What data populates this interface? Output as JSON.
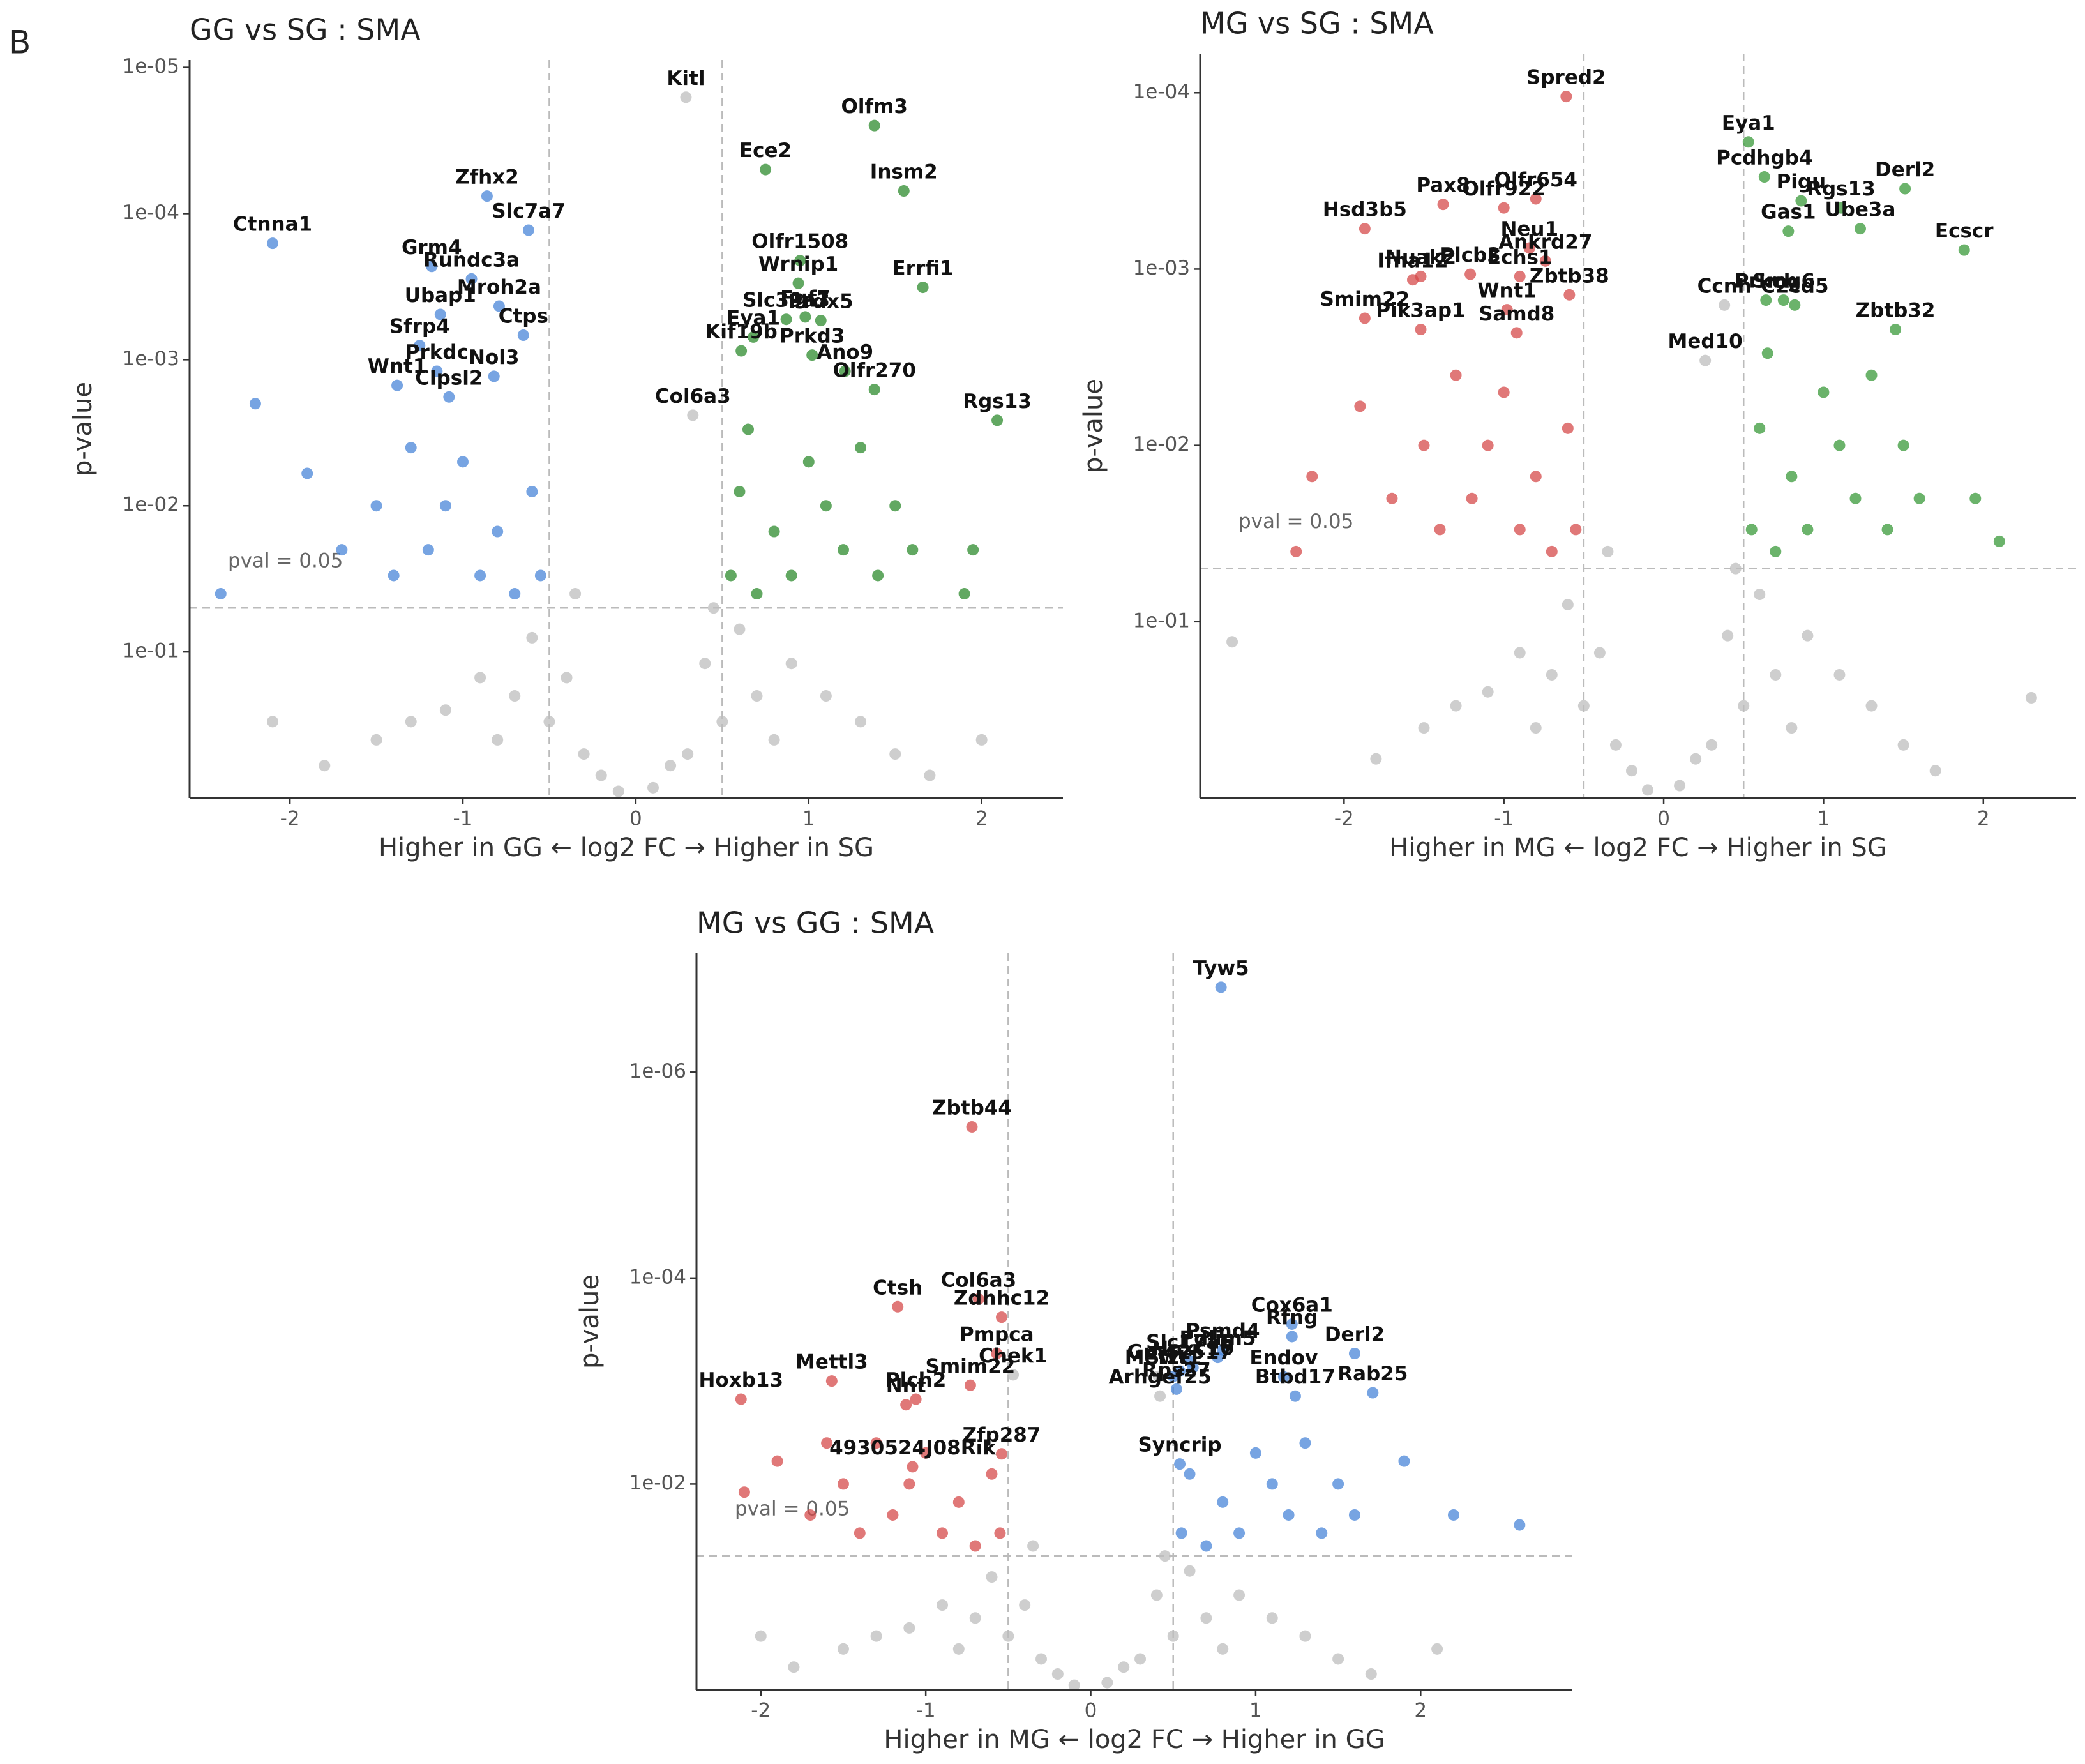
{
  "panel_label": "B",
  "chart_data": [
    {
      "type": "scatter",
      "title": "GG vs SG : SMA",
      "xlabel": "Higher in GG ← log2 FC → Higher in SG",
      "ylabel": "p-value",
      "xlim": [
        -2.58,
        2.47
      ],
      "ylim": [
        1,
        8.9e-06
      ],
      "log_y": true,
      "xticks": [
        -2,
        -1,
        0,
        1,
        2
      ],
      "yticks": [
        {
          "value": 1e-05,
          "label": "1e-05"
        },
        {
          "value": 0.0001,
          "label": "1e-04"
        },
        {
          "value": 0.001,
          "label": "1e-03"
        },
        {
          "value": 0.01,
          "label": "1e-02"
        },
        {
          "value": 0.1,
          "label": "1e-01"
        }
      ],
      "threshold_x": [
        -0.5,
        0.5
      ],
      "threshold_y": 0.05,
      "threshold_label": "pval = 0.05",
      "series": [
        {
          "color": "#bdbdbd",
          "x": [
            -0.1,
            0.1,
            -0.3,
            0.3,
            -0.5,
            0.5,
            -0.7,
            0.7,
            -0.9,
            0.9,
            -1.1,
            1.1,
            -1.3,
            1.3,
            -0.4,
            0.4,
            -0.2,
            0.2,
            -0.6,
            0.6,
            -1.5,
            1.5,
            -0.35,
            0.45,
            -1.8,
            1.7,
            -0.8,
            0.8,
            -2.1,
            2.0,
            0.29,
            0.33
          ],
          "values": [
            0.9,
            0.85,
            0.5,
            0.5,
            0.3,
            0.3,
            0.2,
            0.2,
            0.15,
            0.12,
            0.25,
            0.2,
            0.3,
            0.3,
            0.15,
            0.12,
            0.7,
            0.6,
            0.08,
            0.07,
            0.4,
            0.5,
            0.04,
            0.05,
            0.6,
            0.7,
            0.4,
            0.4,
            0.3,
            0.4,
            1.6e-05,
            0.0024
          ],
          "labels": [
            null,
            null,
            null,
            null,
            null,
            null,
            null,
            null,
            null,
            null,
            null,
            null,
            null,
            null,
            null,
            null,
            null,
            null,
            null,
            null,
            null,
            null,
            null,
            null,
            null,
            null,
            null,
            null,
            null,
            null,
            "Kitl",
            "Col6a3"
          ]
        },
        {
          "color": "#4a86d8",
          "x": [
            -0.7,
            -0.9,
            -1.2,
            -1.5,
            -0.6,
            -1.0,
            -1.3,
            -1.7,
            -0.8,
            -1.1,
            -0.55,
            -1.4,
            -2.4,
            -2.2,
            -1.9,
            -0.86,
            -0.62,
            -2.1,
            -1.18,
            -0.95,
            -1.13,
            -0.79,
            -0.65,
            -1.25,
            -1.15,
            -1.38,
            -1.08,
            -0.82
          ],
          "values": [
            0.04,
            0.03,
            0.02,
            0.01,
            0.008,
            0.005,
            0.004,
            0.02,
            0.015,
            0.01,
            0.03,
            0.03,
            0.04,
            0.002,
            0.006,
            7.6e-05,
            0.00013,
            0.00016,
            0.00023,
            0.00028,
            0.00049,
            0.00043,
            0.00068,
            0.0008,
            0.0012,
            0.0015,
            0.0018,
            0.0013
          ],
          "labels": [
            null,
            null,
            null,
            null,
            null,
            null,
            null,
            null,
            null,
            null,
            null,
            null,
            null,
            null,
            null,
            "Zfhx2",
            "Slc7a7",
            "Ctnna1",
            "Grm4",
            "Rundc3a",
            "Ubap1",
            "Mroh2a",
            "Ctps",
            "Sfrp4",
            "Prkdc",
            "Wnt1",
            "Clpsl2",
            "Nol3"
          ]
        },
        {
          "color": "#2e8b2e",
          "x": [
            0.7,
            0.9,
            1.2,
            1.5,
            0.6,
            1.0,
            1.3,
            1.6,
            0.8,
            1.1,
            0.55,
            1.4,
            1.9,
            1.95,
            0.65,
            1.38,
            0.75,
            1.55,
            0.94,
            0.95,
            0.87,
            0.98,
            1.66,
            1.07,
            0.68,
            0.61,
            1.21,
            1.02,
            2.09,
            1.38
          ],
          "values": [
            0.04,
            0.03,
            0.02,
            0.01,
            0.008,
            0.005,
            0.004,
            0.02,
            0.015,
            0.01,
            0.03,
            0.03,
            0.04,
            0.02,
            0.003,
            2.5e-05,
            5e-05,
            7e-05,
            0.0003,
            0.00021,
            0.00053,
            0.00051,
            0.00032,
            0.00054,
            0.0007,
            0.00087,
            0.0012,
            0.00093,
            0.0026,
            0.0016
          ],
          "labels": [
            null,
            null,
            null,
            null,
            null,
            null,
            null,
            null,
            null,
            null,
            null,
            null,
            null,
            null,
            null,
            "Olfm3",
            "Ece2",
            "Insm2",
            "Wrnip1",
            "Olfr1508",
            "Slc39a3",
            "Fgf7",
            "Errfi1",
            "Prdx5",
            "Eya1",
            "Kif19b",
            "Ano9",
            "Prkd3",
            "Rgs13",
            "Olfr270"
          ]
        }
      ]
    },
    {
      "type": "scatter",
      "title": "MG vs SG : SMA",
      "xlabel": "Higher in MG ← log2 FC → Higher in SG",
      "ylabel": "p-value",
      "xlim": [
        -2.9,
        2.58
      ],
      "ylim": [
        1,
        6e-05
      ],
      "log_y": true,
      "xticks": [
        -2,
        -1,
        0,
        1,
        2
      ],
      "yticks": [
        {
          "value": 0.0001,
          "label": "1e-04"
        },
        {
          "value": 0.001,
          "label": "1e-03"
        },
        {
          "value": 0.01,
          "label": "1e-02"
        },
        {
          "value": 0.1,
          "label": "1e-01"
        }
      ],
      "threshold_x": [
        -0.5,
        0.5
      ],
      "threshold_y": 0.05,
      "threshold_label": "pval = 0.05",
      "series": [
        {
          "color": "#bdbdbd",
          "x": [
            -0.1,
            0.1,
            -0.3,
            0.3,
            -0.5,
            0.5,
            -0.7,
            0.7,
            -0.9,
            0.9,
            -1.1,
            1.1,
            -1.3,
            1.3,
            -0.4,
            0.4,
            -0.2,
            0.2,
            -0.6,
            0.6,
            -1.5,
            1.5,
            -0.35,
            0.45,
            -1.8,
            1.7,
            -0.8,
            0.8,
            -2.7,
            2.3,
            0.38,
            0.26
          ],
          "values": [
            0.9,
            0.85,
            0.5,
            0.5,
            0.3,
            0.3,
            0.2,
            0.2,
            0.15,
            0.12,
            0.25,
            0.2,
            0.3,
            0.3,
            0.15,
            0.12,
            0.7,
            0.6,
            0.08,
            0.07,
            0.4,
            0.5,
            0.04,
            0.05,
            0.6,
            0.7,
            0.4,
            0.4,
            0.13,
            0.27,
            0.0016,
            0.0033
          ],
          "labels": [
            null,
            null,
            null,
            null,
            null,
            null,
            null,
            null,
            null,
            null,
            null,
            null,
            null,
            null,
            null,
            null,
            null,
            null,
            null,
            null,
            null,
            null,
            null,
            null,
            null,
            null,
            null,
            null,
            null,
            null,
            "Ccnh",
            "Med10"
          ]
        },
        {
          "color": "#d64b4b",
          "x": [
            -0.7,
            -0.9,
            -1.2,
            -1.5,
            -0.6,
            -1.0,
            -1.3,
            -1.7,
            -0.8,
            -1.1,
            -0.55,
            -1.4,
            -2.3,
            -2.2,
            -1.9,
            -0.61,
            -1.87,
            -1.38,
            -0.8,
            -1.0,
            -0.84,
            -0.74,
            -1.52,
            -1.21,
            -0.9,
            -1.57,
            -1.87,
            -0.98,
            -0.59,
            -1.52,
            -0.92
          ],
          "values": [
            0.04,
            0.03,
            0.02,
            0.01,
            0.008,
            0.005,
            0.004,
            0.02,
            0.015,
            0.01,
            0.03,
            0.03,
            0.04,
            0.015,
            0.006,
            0.000105,
            0.00059,
            0.00043,
            0.0004,
            0.00045,
            0.00076,
            0.0009,
            0.0011,
            0.00107,
            0.0011,
            0.00115,
            0.0019,
            0.0017,
            0.0014,
            0.0022,
            0.0023
          ],
          "labels": [
            null,
            null,
            null,
            null,
            null,
            null,
            null,
            null,
            null,
            null,
            null,
            null,
            null,
            null,
            null,
            "Spred2",
            "Hsd3b5",
            "Pax8",
            "Olfr654",
            "Olfr922",
            "Neu1",
            "Ankrd27",
            "Nuak2",
            "Plcb3",
            "Echs1",
            "Ifna12",
            "Smim22",
            "Wnt1",
            "Zbtb38",
            "Pik3ap1",
            "Samd8"
          ]
        },
        {
          "color": "#3a9a3a",
          "x": [
            0.7,
            0.9,
            1.2,
            1.5,
            0.6,
            1.0,
            1.3,
            1.6,
            0.8,
            1.1,
            0.55,
            1.4,
            2.1,
            1.95,
            0.65,
            0.53,
            0.63,
            0.86,
            1.51,
            0.78,
            1.11,
            1.23,
            1.88,
            0.64,
            0.75,
            1.45,
            0.82
          ],
          "values": [
            0.04,
            0.03,
            0.02,
            0.01,
            0.008,
            0.005,
            0.004,
            0.02,
            0.015,
            0.01,
            0.03,
            0.03,
            0.035,
            0.02,
            0.003,
            0.00019,
            0.0003,
            0.00041,
            0.00035,
            0.00061,
            0.00045,
            0.00059,
            0.00078,
            0.0015,
            0.0015,
            0.0022,
            0.0016
          ],
          "labels": [
            null,
            null,
            null,
            null,
            null,
            null,
            null,
            null,
            null,
            null,
            null,
            null,
            null,
            null,
            null,
            "Eya1",
            "Pcdhgb4",
            "Pigu",
            "Derl2",
            "Gas1",
            "Rgs13",
            "Ube3a",
            "Ecscr",
            "Prkch",
            "Smg6",
            "Zbtb32",
            "C2cd5"
          ]
        }
      ]
    },
    {
      "type": "scatter",
      "title": "MG vs GG : SMA",
      "xlabel": "Higher in MG ← log2 FC → Higher in GG",
      "ylabel": "p-value",
      "xlim": [
        -2.39,
        2.92
      ],
      "ylim": [
        1,
        7e-08
      ],
      "log_y": true,
      "xticks": [
        -2,
        -1,
        0,
        1,
        2
      ],
      "yticks": [
        {
          "value": 1e-06,
          "label": "1e-06"
        },
        {
          "value": 0.0001,
          "label": "1e-04"
        },
        {
          "value": 0.01,
          "label": "1e-02"
        }
      ],
      "threshold_x": [
        -0.5,
        0.5
      ],
      "threshold_y": 0.05,
      "threshold_label": "pval = 0.05",
      "series": [
        {
          "color": "#bdbdbd",
          "x": [
            -0.1,
            0.1,
            -0.3,
            0.3,
            -0.5,
            0.5,
            -0.7,
            0.7,
            -0.9,
            0.9,
            -1.1,
            1.1,
            -1.3,
            1.3,
            -0.4,
            0.4,
            -0.2,
            0.2,
            -0.6,
            0.6,
            -1.5,
            1.5,
            -0.35,
            0.45,
            -1.8,
            1.7,
            -0.8,
            0.8,
            -2.0,
            2.1,
            -0.47,
            0.42,
            0.41
          ],
          "values": [
            0.9,
            0.85,
            0.5,
            0.5,
            0.3,
            0.3,
            0.2,
            0.2,
            0.15,
            0.12,
            0.25,
            0.2,
            0.3,
            0.3,
            0.15,
            0.12,
            0.7,
            0.6,
            0.08,
            0.07,
            0.4,
            0.5,
            0.04,
            0.05,
            0.6,
            0.7,
            0.4,
            0.4,
            0.3,
            0.4,
            0.00087,
            0.0014,
            0.0009
          ],
          "labels": [
            null,
            null,
            null,
            null,
            null,
            null,
            null,
            null,
            null,
            null,
            null,
            null,
            null,
            null,
            null,
            null,
            null,
            null,
            null,
            null,
            null,
            null,
            null,
            null,
            null,
            null,
            null,
            null,
            null,
            null,
            "Chek1",
            "Arhgef25",
            "Mef2c"
          ]
        },
        {
          "color": "#d64b4b",
          "x": [
            -0.7,
            -0.9,
            -1.2,
            -1.5,
            -0.6,
            -1.0,
            -1.3,
            -1.7,
            -0.8,
            -1.1,
            -0.55,
            -1.4,
            -2.1,
            -1.9,
            -1.6,
            -0.72,
            -0.68,
            -1.17,
            -0.54,
            -0.57,
            -1.57,
            -1.06,
            -2.12,
            -1.12,
            -0.73,
            -0.54,
            -1.08
          ],
          "values": [
            0.04,
            0.03,
            0.02,
            0.01,
            0.008,
            0.005,
            0.004,
            0.02,
            0.015,
            0.01,
            0.03,
            0.03,
            0.012,
            0.006,
            0.004,
            3.4e-06,
            0.00016,
            0.00019,
            0.00024,
            0.00054,
            0.001,
            0.0015,
            0.0015,
            0.0017,
            0.0011,
            0.0051,
            0.0068
          ],
          "labels": [
            null,
            null,
            null,
            null,
            null,
            null,
            null,
            null,
            null,
            null,
            null,
            null,
            null,
            null,
            null,
            "Zbtb44",
            "Col6a3",
            "Ctsh",
            "Zdhhc12",
            "Pmpca",
            "Mettl3",
            "Plch2",
            "Hoxb13",
            "Nnt",
            "Smim22",
            "Zfp287",
            "4930524J08Rik"
          ]
        },
        {
          "color": "#4a86d8",
          "x": [
            0.7,
            0.9,
            1.2,
            1.5,
            0.6,
            1.0,
            1.3,
            1.6,
            0.8,
            1.1,
            0.55,
            1.4,
            2.2,
            2.6,
            1.9,
            0.79,
            0.54,
            0.8,
            1.22,
            0.5,
            0.77,
            1.22,
            0.6,
            1.6,
            0.62,
            1.17,
            1.71,
            0.52,
            1.24,
            0.54
          ],
          "values": [
            0.04,
            0.03,
            0.02,
            0.01,
            0.008,
            0.005,
            0.004,
            0.02,
            0.015,
            0.01,
            0.03,
            0.03,
            0.02,
            0.025,
            0.006,
            1.5e-07,
            0.0008,
            0.0005,
            0.00028,
            0.0009,
            0.00059,
            0.00037,
            0.00064,
            0.00054,
            0.00074,
            0.00091,
            0.0013,
            0.0012,
            0.0014,
            0.0064
          ],
          "labels": [
            null,
            null,
            null,
            null,
            null,
            null,
            null,
            null,
            null,
            null,
            null,
            null,
            null,
            null,
            null,
            "Tyw5",
            "Gm42517",
            "Psmd4",
            "Cox6a1",
            "Swt1",
            "Pdlim5",
            "Rfng",
            "Slc17a6",
            "Derl2",
            "Hoxc10",
            "Endov",
            "Rab25",
            "Rps27",
            "Btbd17",
            "Syncrip"
          ]
        }
      ]
    }
  ]
}
